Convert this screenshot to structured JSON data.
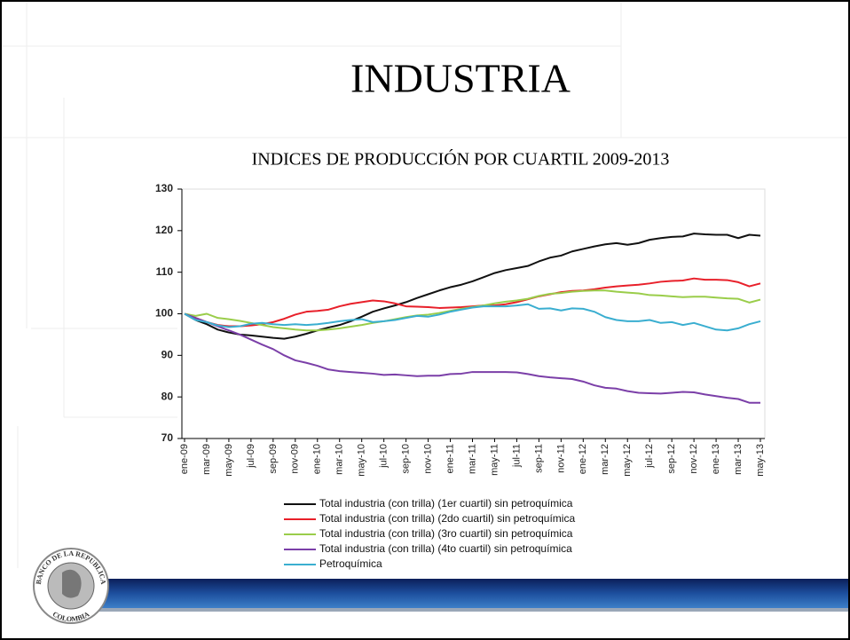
{
  "title": "INDUSTRIA",
  "logo": {
    "top": "BANCO DE LA REPUBLICA",
    "bottom": "COLOMBIA"
  },
  "chart_data": {
    "type": "line",
    "title": "INDICES DE PRODUCCIÓN POR CUARTIL 2009-2013",
    "categories": [
      "ene-09",
      null,
      "mar-09",
      null,
      "may-09",
      null,
      "jul-09",
      null,
      "sep-09",
      null,
      "nov-09",
      null,
      "ene-10",
      null,
      "mar-10",
      null,
      "may-10",
      null,
      "jul-10",
      null,
      "sep-10",
      null,
      "nov-10",
      null,
      "ene-11",
      null,
      "mar-11",
      null,
      "may-11",
      null,
      "jul-11",
      null,
      "sep-11",
      null,
      "nov-11",
      null,
      "ene-12",
      null,
      "mar-12",
      null,
      "may-12",
      null,
      "jul-12",
      null,
      "sep-12",
      null,
      "nov-12",
      null,
      "ene-13",
      null,
      "mar-13",
      null,
      "may-13"
    ],
    "ylim": [
      70,
      130
    ],
    "yticks": [
      70,
      80,
      90,
      100,
      110,
      120,
      130
    ],
    "series": [
      {
        "name": "Total industria (con trilla) (1er cuartil) sin petroquímica",
        "color": "#111111",
        "values": [
          100,
          98.5,
          97.5,
          96.2,
          95.5,
          95,
          94.8,
          94.5,
          94.2,
          94,
          94.5,
          95.2,
          96,
          96.7,
          97.3,
          98.2,
          99.3,
          100.5,
          101.3,
          102,
          102.8,
          103.8,
          104.7,
          105.6,
          106.4,
          107,
          107.8,
          108.8,
          109.8,
          110.5,
          111,
          111.5,
          112.6,
          113.5,
          114,
          115,
          115.6,
          116.2,
          116.7,
          117,
          116.6,
          117,
          117.8,
          118.2,
          118.5,
          118.6,
          119.3,
          119.1,
          119,
          119,
          118.2,
          119,
          118.8
        ]
      },
      {
        "name": "Total industria (con trilla) (2do cuartil) sin petroquímica",
        "color": "#e8202a",
        "values": [
          100,
          99,
          98,
          97.3,
          97,
          97,
          97.2,
          97.5,
          98,
          98.8,
          99.8,
          100.5,
          100.7,
          101,
          101.8,
          102.4,
          102.8,
          103.2,
          103,
          102.5,
          101.8,
          101.7,
          101.6,
          101.4,
          101.5,
          101.6,
          101.8,
          102,
          102,
          102.3,
          102.8,
          103.5,
          104.2,
          104.7,
          105.2,
          105.5,
          105.6,
          105.9,
          106.3,
          106.6,
          106.8,
          107,
          107.3,
          107.7,
          107.9,
          108,
          108.5,
          108.2,
          108.2,
          108.1,
          107.6,
          106.6,
          107.3
        ]
      },
      {
        "name": "Total industria (con trilla) (3ro cuartil) sin petroquímica",
        "color": "#9acd4a",
        "values": [
          100,
          99.5,
          100,
          99,
          98.7,
          98.3,
          97.8,
          97.3,
          96.8,
          96.5,
          96.2,
          96,
          96,
          96.2,
          96.5,
          96.9,
          97.3,
          97.8,
          98.2,
          98.7,
          99.2,
          99.6,
          99.8,
          100.2,
          100.7,
          101.2,
          101.6,
          102,
          102.5,
          102.9,
          103.2,
          103.6,
          104.3,
          104.8,
          105,
          105.3,
          105.5,
          105.6,
          105.6,
          105.3,
          105.1,
          104.9,
          104.5,
          104.4,
          104.2,
          104,
          104.1,
          104.1,
          103.9,
          103.7,
          103.6,
          102.7,
          103.4
        ]
      },
      {
        "name": "Total industria (con trilla) (4to cuartil) sin petroquímica",
        "color": "#7b3fa8",
        "values": [
          100,
          99,
          98,
          97,
          96,
          95,
          93.8,
          92.6,
          91.5,
          90,
          88.8,
          88.2,
          87.5,
          86.6,
          86.2,
          86,
          85.8,
          85.6,
          85.3,
          85.4,
          85.2,
          85,
          85.1,
          85.1,
          85.5,
          85.6,
          86,
          86,
          86,
          86,
          85.9,
          85.5,
          85,
          84.7,
          84.5,
          84.3,
          83.7,
          82.8,
          82.2,
          82,
          81.4,
          81,
          80.9,
          80.8,
          81,
          81.2,
          81.1,
          80.6,
          80.2,
          79.8,
          79.5,
          78.6,
          78.6
        ]
      },
      {
        "name": "Petroquímica",
        "color": "#3aaed0",
        "values": [
          100,
          98.5,
          98,
          97.2,
          96.8,
          97,
          97.6,
          97.8,
          97.5,
          97.3,
          97.5,
          97.3,
          97.5,
          97.8,
          98.2,
          98.5,
          98.7,
          98,
          98.2,
          98.5,
          99,
          99.5,
          99.3,
          99.8,
          100.5,
          101,
          101.5,
          101.8,
          101.8,
          101.8,
          102,
          102.3,
          101.2,
          101.3,
          100.8,
          101.3,
          101.2,
          100.5,
          99.2,
          98.5,
          98.2,
          98.2,
          98.5,
          97.8,
          98,
          97.3,
          97.8,
          97,
          96.2,
          96,
          96.5,
          97.5,
          98.2
        ]
      }
    ]
  }
}
